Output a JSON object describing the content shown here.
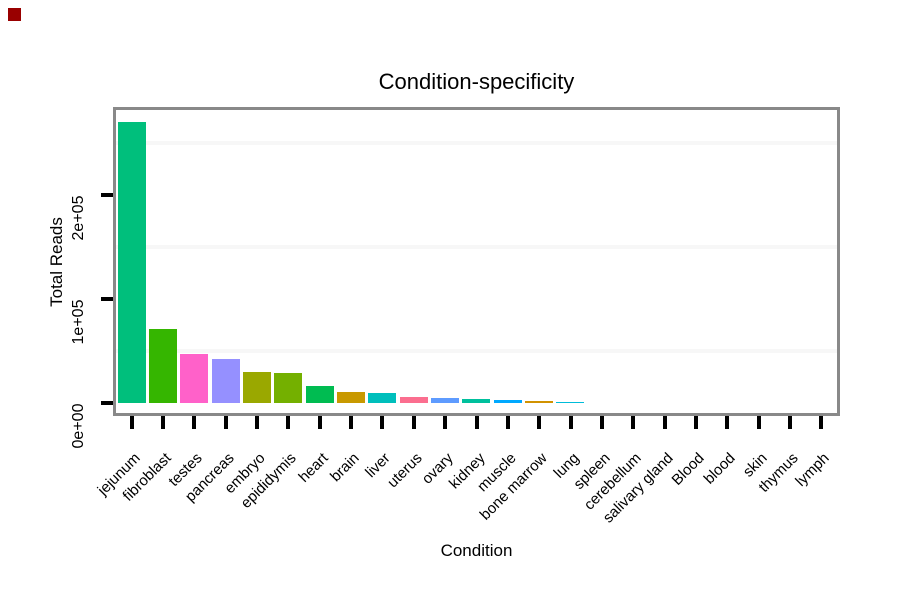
{
  "window": {
    "marker_color": "#990000"
  },
  "chart_data": {
    "type": "bar",
    "title": "Condition-specificity",
    "xlabel": "Condition",
    "ylabel": "Total Reads",
    "legend": "none",
    "grid": "minor-only",
    "ylim": [
      0,
      285000
    ],
    "y_ticks": [
      {
        "label": "0e+00",
        "value": 0
      },
      {
        "label": "1e+05",
        "value": 100000
      },
      {
        "label": "2e+05",
        "value": 200000
      }
    ],
    "minor_gridlines": [
      50000,
      150000,
      250000
    ],
    "categories": [
      "jejunum",
      "fibroblast",
      "testes",
      "pancreas",
      "embryo",
      "epididymis",
      "heart",
      "brain",
      "liver",
      "uterus",
      "ovary",
      "kidney",
      "muscle",
      "bone marrow",
      "lung",
      "spleen",
      "cerebellum",
      "salivary gland",
      "Blood",
      "blood",
      "skin",
      "thymus",
      "lymph"
    ],
    "values": [
      270000,
      71000,
      47000,
      42000,
      30000,
      29000,
      16000,
      11000,
      9500,
      5800,
      4800,
      3800,
      2900,
      1800,
      1400,
      400,
      300,
      250,
      200,
      150,
      100,
      80,
      50
    ],
    "colors": [
      "#00BF7C",
      "#35B600",
      "#FF61C9",
      "#9590FF",
      "#9AA800",
      "#74B000",
      "#00BC51",
      "#C89900",
      "#00BFBC",
      "#FB6E8F",
      "#5E9BFF",
      "#00C09D",
      "#00A9FF",
      "#D19200",
      "#00BCD9",
      "#F263E5",
      "#B1A300",
      "#BF80FF",
      "#EA8331",
      "#F8766D",
      "#DB72F8",
      "#FF64B3",
      "#00B5EE"
    ],
    "styles": {
      "panel_border_color": "#898989",
      "axis_tick_color": "#000000",
      "minor_grid_color": "#F7F7F7",
      "text_color": "#000000"
    }
  }
}
